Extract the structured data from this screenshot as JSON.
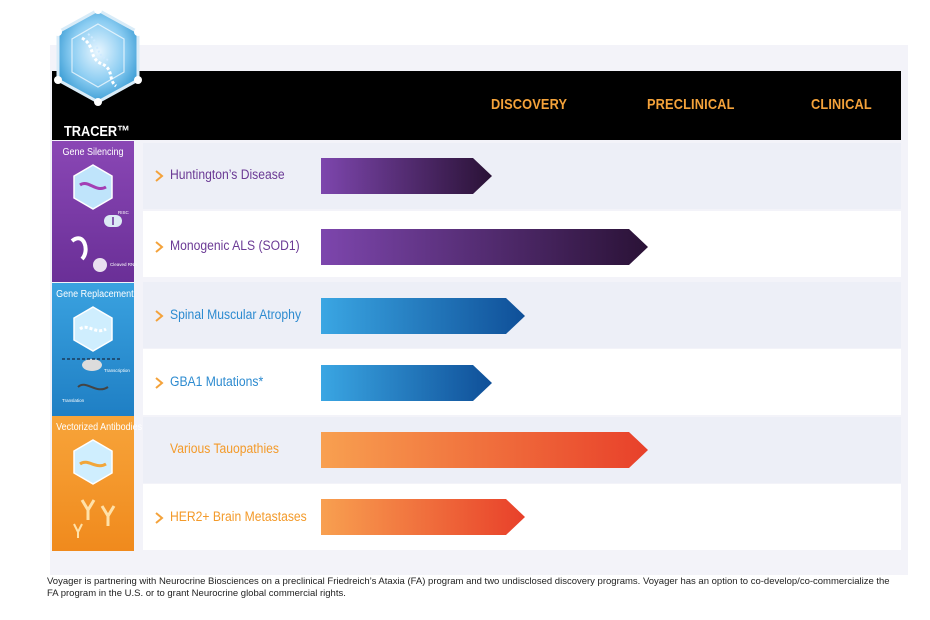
{
  "logo": {
    "name": "TRACER™"
  },
  "stages": [
    "DISCOVERY",
    "PRECLINICAL",
    "CLINICAL"
  ],
  "categories": [
    {
      "title": "Gene Silencing",
      "color": "#7a3ea1",
      "labels": [
        "RISC",
        "Cleaved RNA"
      ]
    },
    {
      "title": "Gene Replacement",
      "color": "#2d8bd0",
      "labels": [
        "Transcription",
        "Translation"
      ]
    },
    {
      "title": "Vectorized Antibodies",
      "color": "#f39a2a",
      "labels": []
    }
  ],
  "programs": [
    {
      "name": "Huntington’s Disease",
      "category": "Gene Silencing",
      "stage_progress": 0.33,
      "color": "#6b3a95",
      "arrow": true
    },
    {
      "name": "Monogenic ALS (SOD1)",
      "category": "Gene Silencing",
      "stage_progress": 0.66,
      "color": "#6b3a95",
      "arrow": true
    },
    {
      "name": "Spinal Muscular Atrophy",
      "category": "Gene Replacement",
      "stage_progress": 0.4,
      "color": "#2d8bd0",
      "arrow": true
    },
    {
      "name": "GBA1 Mutations*",
      "category": "Gene Replacement",
      "stage_progress": 0.33,
      "color": "#2d8bd0",
      "arrow": true
    },
    {
      "name": "Various Tauopathies",
      "category": "Vectorized Antibodies",
      "stage_progress": 0.66,
      "color": "#f39a2a",
      "arrow": false
    },
    {
      "name": "HER2+ Brain Metastases",
      "category": "Vectorized Antibodies",
      "stage_progress": 0.4,
      "color": "#f39a2a",
      "arrow": true
    }
  ],
  "colors": {
    "accent_orange": "#f4a23a",
    "header": "#000000"
  },
  "footnote": "Voyager is partnering with Neurocrine Biosciences on a preclinical Friedreich’s Ataxia (FA) program and two undisclosed discovery programs. Voyager has an option to co-develop/co-commercialize the FA program in the U.S. or to grant Neurocrine global commercial rights."
}
